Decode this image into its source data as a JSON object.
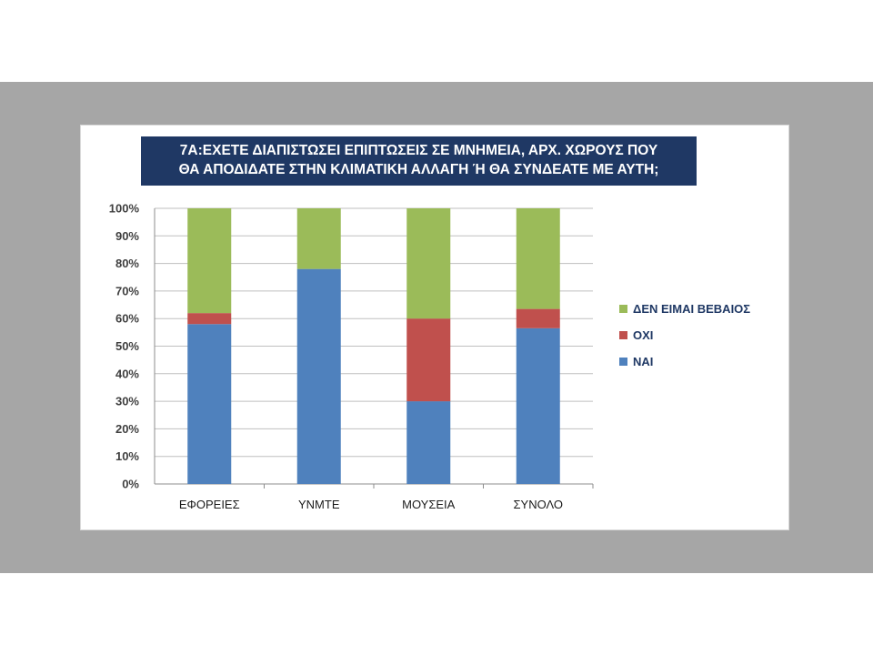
{
  "chart_data": {
    "type": "bar",
    "stacked": true,
    "title_lines": [
      "7Α:ΕΧΕΤΕ ΔΙΑΠΙΣΤΩΣΕΙ ΕΠΙΠΤΩΣΕΙΣ ΣΕ ΜΝΗΜΕΙΑ, ΑΡΧ. ΧΩΡΟΥΣ ΠΟΥ",
      "ΘΑ ΑΠΟΔΙΔΑΤΕ ΣΤΗΝ ΚΛΙΜΑΤΙΚΗ ΑΛΛΑΓΗ Ή ΘΑ ΣΥΝΔΕΑΤΕ ΜΕ ΑΥΤΗ;"
    ],
    "categories": [
      "ΕΦΟΡΕΙΕΣ",
      "ΥΝΜΤΕ",
      "ΜΟΥΣΕΙΑ",
      "ΣΥΝΟΛΟ"
    ],
    "series": [
      {
        "name": "ΝΑΙ",
        "color": "#4f81bd",
        "values": [
          58,
          78,
          30,
          56.5
        ]
      },
      {
        "name": "ΟΧΙ",
        "color": "#c0504d",
        "values": [
          4,
          0,
          30,
          7
        ]
      },
      {
        "name": "ΔΕΝ ΕΙΜΑΙ ΒΕΒΑΙΟΣ",
        "color": "#9bbb59",
        "values": [
          38,
          22,
          40,
          36.5
        ]
      }
    ],
    "yticks": [
      "0%",
      "10%",
      "20%",
      "30%",
      "40%",
      "50%",
      "60%",
      "70%",
      "80%",
      "90%",
      "100%"
    ],
    "ylim": [
      0,
      100
    ],
    "grid": true,
    "legend_position": "right",
    "legend_order": [
      "ΔΕΝ ΕΙΜΑΙ ΒΕΒΑΙΟΣ",
      "ΟΧΙ",
      "ΝΑΙ"
    ]
  }
}
